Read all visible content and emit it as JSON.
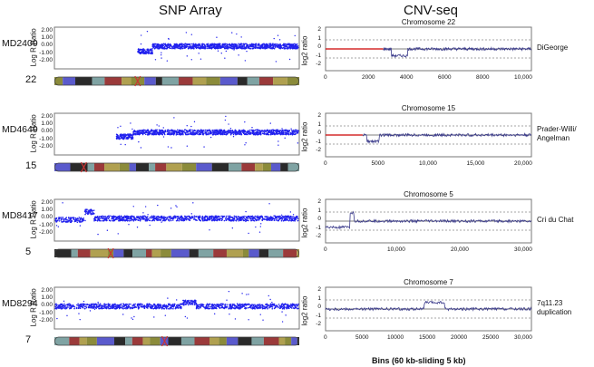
{
  "headers": {
    "snp": "SNP Array",
    "cnv": "CNV-seq"
  },
  "snp_ylabel": "Log R Ratio",
  "snp_ticks": [
    "2.00",
    "1.00",
    "0.00",
    "-1.00",
    "-2.00"
  ],
  "cnv_ylabel": "log2 ratio",
  "cnv_ticks": [
    "2",
    "1",
    "0",
    "-1",
    "-2"
  ],
  "x_axis_label": "Bins (60 kb-sliding 5 kb)",
  "panels": [
    {
      "sample": "MD2409",
      "chr": "22",
      "cnv_title": "Chromosome 22",
      "diagnosis": [
        "DiGeorge"
      ],
      "xticks": [
        "0",
        "2000",
        "4000",
        "6000",
        "8000",
        "10,000"
      ]
    },
    {
      "sample": "MD4649",
      "chr": "15",
      "cnv_title": "Chromosome 15",
      "diagnosis": [
        "Prader-Willi/",
        "Angelman"
      ],
      "xticks": [
        "0",
        "5000",
        "10,000",
        "15,000",
        "20,000"
      ]
    },
    {
      "sample": "MD8417",
      "chr": "5",
      "cnv_title": "Chromosome 5",
      "diagnosis": [
        "Cri du Chat"
      ],
      "xticks": [
        "0",
        "10,000",
        "20,000",
        "30,000"
      ]
    },
    {
      "sample": "MD8294",
      "chr": "7",
      "cnv_title": "Chromosome 7",
      "diagnosis": [
        "7q11.23",
        "duplication"
      ],
      "xticks": [
        "0",
        "5000",
        "10000",
        "15000",
        "20000",
        "25000",
        "30,000"
      ]
    }
  ],
  "colors": {
    "points": "#2222ee",
    "cnv_line": "#3a3a8a",
    "red": "#cc0000"
  }
}
